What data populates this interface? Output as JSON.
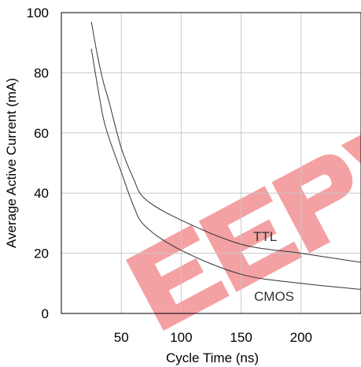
{
  "chart_data": {
    "type": "line",
    "title": "",
    "xlabel": "Cycle Time (ns)",
    "ylabel": "Average Active Current (mA)",
    "xlim": [
      0,
      250
    ],
    "ylim": [
      0,
      100
    ],
    "x_ticks": [
      50,
      100,
      150,
      200
    ],
    "y_ticks": [
      0,
      20,
      40,
      60,
      80,
      100
    ],
    "grid": true,
    "series": [
      {
        "name": "TTL",
        "x": [
          25,
          30,
          35,
          40,
          50,
          60,
          70,
          100,
          150,
          200,
          250
        ],
        "y": [
          97,
          86,
          77,
          70,
          55,
          45,
          38,
          31,
          23,
          20,
          17
        ]
      },
      {
        "name": "CMOS",
        "x": [
          25,
          30,
          35,
          40,
          50,
          60,
          70,
          100,
          150,
          200,
          250
        ],
        "y": [
          88,
          76,
          65,
          58,
          47,
          36,
          29,
          21,
          13,
          10,
          8
        ]
      }
    ],
    "watermark_color": "#e8454a",
    "line_color": "#333333",
    "grid_color": "#c8c8c8"
  }
}
